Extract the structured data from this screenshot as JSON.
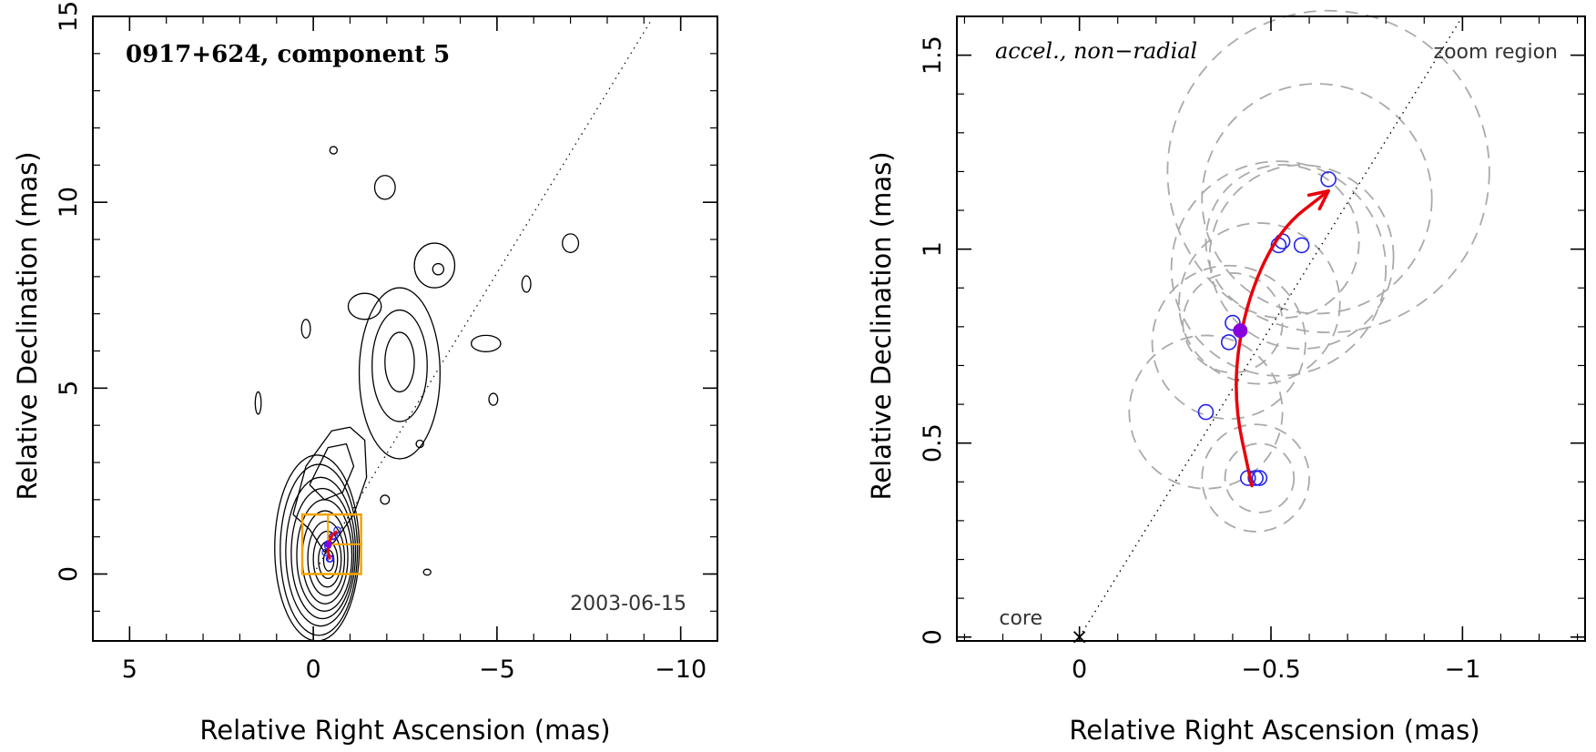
{
  "colors": {
    "axis": "#000000",
    "contour": "#000000",
    "trajectory": "#e8000b",
    "epoch_marker": "#2222ee",
    "current_epoch": "#8800dd",
    "zoom_box": "#f5a300",
    "error_circle": "#aaaaaa"
  },
  "chart_data": [
    {
      "type": "contour",
      "title": "0917+624, component 5",
      "date": "2003-06-15",
      "xlabel": "Relative Right Ascension (mas)",
      "ylabel": "Relative Declination (mas)",
      "xlim": [
        6,
        -11
      ],
      "ylim": [
        -1.8,
        15
      ],
      "xticks": [
        5,
        0,
        -5,
        -10
      ],
      "xtick_labels": [
        "5",
        "0",
        "−5",
        "−10"
      ],
      "yticks": [
        0,
        5,
        10,
        15
      ],
      "ytick_labels": [
        "0",
        "5",
        "10",
        "15"
      ],
      "jet_axis_line": {
        "x": [
          0,
          -9.2
        ],
        "y": [
          0,
          14.9
        ]
      },
      "zoom_box": {
        "x": [
          0.3,
          -1.3
        ],
        "y": [
          0,
          1.6
        ]
      },
      "zoom_box_inner": {
        "x": [
          -0.4,
          -1.3
        ],
        "y": [
          0.8,
          1.6
        ]
      },
      "core_contours": [
        {
          "cx": -0.1,
          "cy": 0.7,
          "rx": 1.15,
          "ry": 2.5
        },
        {
          "cx": -0.15,
          "cy": 0.65,
          "rx": 1.05,
          "ry": 2.3
        },
        {
          "cx": -0.2,
          "cy": 0.6,
          "rx": 0.95,
          "ry": 2.0
        },
        {
          "cx": -0.25,
          "cy": 0.55,
          "rx": 0.85,
          "ry": 1.75
        },
        {
          "cx": -0.3,
          "cy": 0.5,
          "rx": 0.75,
          "ry": 1.5
        },
        {
          "cx": -0.32,
          "cy": 0.45,
          "rx": 0.62,
          "ry": 1.25
        },
        {
          "cx": -0.35,
          "cy": 0.42,
          "rx": 0.5,
          "ry": 1.0
        },
        {
          "cx": -0.38,
          "cy": 0.4,
          "rx": 0.38,
          "ry": 0.75
        },
        {
          "cx": -0.4,
          "cy": 0.38,
          "rx": 0.26,
          "ry": 0.5
        },
        {
          "cx": -0.42,
          "cy": 0.36,
          "rx": 0.14,
          "ry": 0.28
        }
      ],
      "inner_jet_contour": {
        "x": [
          0.55,
          0.1,
          -0.3,
          -0.6,
          -1.1,
          -1.45,
          -1.4,
          -1.0,
          -0.5,
          0.2,
          0.55
        ],
        "y": [
          1.6,
          1.2,
          0.6,
          0.9,
          1.6,
          2.6,
          3.6,
          3.95,
          3.85,
          2.9,
          1.6
        ]
      },
      "inner_jet_contour2": {
        "x": [
          0.1,
          -0.3,
          -0.8,
          -1.1,
          -0.9,
          -0.4,
          0.1
        ],
        "y": [
          2.4,
          2.0,
          2.2,
          2.9,
          3.5,
          3.4,
          2.4
        ]
      },
      "knot_contours": [
        {
          "cx": -2.35,
          "cy": 5.4,
          "rx": 1.1,
          "ry": 2.3
        },
        {
          "cx": -2.35,
          "cy": 5.6,
          "rx": 0.75,
          "ry": 1.5
        },
        {
          "cx": -2.35,
          "cy": 5.7,
          "rx": 0.4,
          "ry": 0.8
        },
        {
          "cx": -1.4,
          "cy": 7.2,
          "rx": 0.45,
          "ry": 0.35
        },
        {
          "cx": -3.3,
          "cy": 8.3,
          "rx": 0.55,
          "ry": 0.6
        },
        {
          "cx": -3.4,
          "cy": 8.2,
          "rx": 0.15,
          "ry": 0.15
        },
        {
          "cx": -1.95,
          "cy": 10.4,
          "rx": 0.28,
          "ry": 0.32
        },
        {
          "cx": -0.55,
          "cy": 11.4,
          "rx": 0.1,
          "ry": 0.1
        },
        {
          "cx": 0.2,
          "cy": 6.6,
          "rx": 0.12,
          "ry": 0.25
        },
        {
          "cx": 1.5,
          "cy": 4.6,
          "rx": 0.08,
          "ry": 0.3
        },
        {
          "cx": -4.7,
          "cy": 6.2,
          "rx": 0.4,
          "ry": 0.22
        },
        {
          "cx": -4.9,
          "cy": 4.7,
          "rx": 0.12,
          "ry": 0.16
        },
        {
          "cx": -5.8,
          "cy": 7.8,
          "rx": 0.12,
          "ry": 0.22
        },
        {
          "cx": -7.0,
          "cy": 8.9,
          "rx": 0.22,
          "ry": 0.25
        },
        {
          "cx": -2.9,
          "cy": 3.5,
          "rx": 0.1,
          "ry": 0.1
        },
        {
          "cx": -1.95,
          "cy": 2.0,
          "rx": 0.12,
          "ry": 0.12
        },
        {
          "cx": -3.1,
          "cy": 0.05,
          "rx": 0.1,
          "ry": 0.08
        }
      ]
    },
    {
      "type": "scatter",
      "subtitle": "accel., non−radial",
      "zoom_label": "zoom region",
      "core_label": "core",
      "xlabel": "Relative Right Ascension (mas)",
      "ylabel": "Relative Declination (mas)",
      "xlim": [
        0.32,
        -1.32
      ],
      "ylim": [
        -0.01,
        1.6
      ],
      "xticks": [
        0,
        -0.5,
        -1
      ],
      "xtick_labels": [
        "0",
        "−0.5",
        "−1"
      ],
      "yticks": [
        0,
        0.5,
        1,
        1.5
      ],
      "ytick_labels": [
        "0",
        "0.5",
        "1",
        "1.5"
      ],
      "jet_axis_line": {
        "x": [
          0,
          -1.0
        ],
        "y": [
          0,
          1.6
        ]
      },
      "core_point": {
        "x": 0,
        "y": 0
      },
      "epoch_positions": {
        "x": [
          -0.44,
          -0.46,
          -0.47,
          -0.33,
          -0.39,
          -0.4,
          -0.52,
          -0.53,
          -0.58,
          -0.65
        ],
        "y": [
          0.41,
          0.41,
          0.41,
          0.58,
          0.76,
          0.81,
          1.01,
          1.02,
          1.01,
          1.18
        ]
      },
      "current_epoch": {
        "x": -0.42,
        "y": 0.79
      },
      "trajectory": {
        "x": [
          -0.45,
          -0.4,
          -0.43,
          -0.52,
          -0.65
        ],
        "y": [
          0.39,
          0.62,
          0.85,
          1.05,
          1.15
        ]
      },
      "error_circles": [
        {
          "x": -0.46,
          "y": 0.41,
          "r": 0.14
        },
        {
          "x": -0.47,
          "y": 0.41,
          "r": 0.09
        },
        {
          "x": -0.33,
          "y": 0.58,
          "r": 0.2
        },
        {
          "x": -0.39,
          "y": 0.76,
          "r": 0.2
        },
        {
          "x": -0.4,
          "y": 0.81,
          "r": 0.13
        },
        {
          "x": -0.52,
          "y": 0.95,
          "r": 0.28
        },
        {
          "x": -0.53,
          "y": 1.02,
          "r": 0.2
        },
        {
          "x": -0.58,
          "y": 0.98,
          "r": 0.24
        },
        {
          "x": -0.62,
          "y": 1.13,
          "r": 0.3
        },
        {
          "x": -0.65,
          "y": 1.2,
          "r": 0.42
        },
        {
          "x": -0.47,
          "y": 0.86,
          "r": 0.21
        }
      ]
    }
  ]
}
